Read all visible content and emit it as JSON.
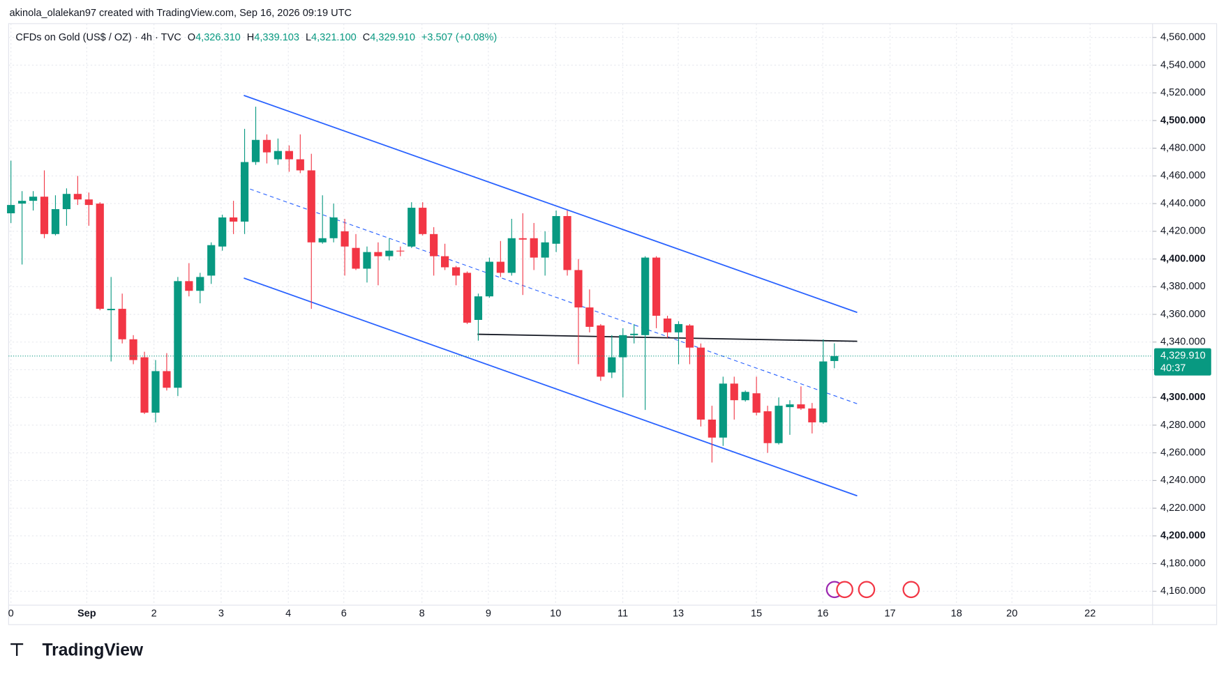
{
  "header": {
    "credit": "akinola_olalekan97 created with TradingView.com, Sep 16, 2026 09:19 UTC",
    "symbol": "CFDs on Gold (US$ / OZ) · 4h · TVC",
    "legend": [
      {
        "key": "O",
        "value": "4,326.310"
      },
      {
        "key": "H",
        "value": "4,339.103"
      },
      {
        "key": "L",
        "value": "4,321.100"
      },
      {
        "key": "C",
        "value": "4,329.910"
      }
    ],
    "change": "+3.507 (+0.08%)"
  },
  "brand": "TradingView",
  "chart_data": {
    "type": "candlestick",
    "up_color": "#089981",
    "down_color": "#f23645",
    "ylim": [
      4150,
      4570
    ],
    "yticks": [
      {
        "value": 4160,
        "label": "4,160.000"
      },
      {
        "value": 4180,
        "label": "4,180.000"
      },
      {
        "value": 4200,
        "label": "4,200.000"
      },
      {
        "value": 4220,
        "label": "4,220.000"
      },
      {
        "value": 4240,
        "label": "4,240.000"
      },
      {
        "value": 4260,
        "label": "4,260.000"
      },
      {
        "value": 4280,
        "label": "4,280.000"
      },
      {
        "value": 4300,
        "label": "4,300.000"
      },
      {
        "value": 4320,
        "label": "4,320.000"
      },
      {
        "value": 4340,
        "label": "4,340.000"
      },
      {
        "value": 4360,
        "label": "4,360.000"
      },
      {
        "value": 4380,
        "label": "4,380.000"
      },
      {
        "value": 4400,
        "label": "4,400.000"
      },
      {
        "value": 4420,
        "label": "4,420.000"
      },
      {
        "value": 4440,
        "label": "4,440.000"
      },
      {
        "value": 4460,
        "label": "4,460.000"
      },
      {
        "value": 4480,
        "label": "4,480.000"
      },
      {
        "value": 4500,
        "label": "4,500.000"
      },
      {
        "value": 4520,
        "label": "4,520.000"
      },
      {
        "value": 4540,
        "label": "4,540.000"
      },
      {
        "value": 4560,
        "label": "4,560.000"
      }
    ],
    "xticks": [
      "0",
      "Sep",
      "2",
      "3",
      "4",
      "6",
      "8",
      "9",
      "10",
      "11",
      "13",
      "15",
      "16",
      "17",
      "18",
      "20",
      "22"
    ],
    "grid": true,
    "last_price_label": "4,329.910",
    "countdown": "40:37",
    "ohlc": [
      [
        4433,
        4471,
        4426,
        4439
      ],
      [
        4440,
        4449,
        4396,
        4442
      ],
      [
        4442,
        4449,
        4435,
        4445
      ],
      [
        4445,
        4464,
        4415,
        4418
      ],
      [
        4418,
        4446,
        4417,
        4436
      ],
      [
        4436,
        4451,
        4424,
        4447
      ],
      [
        4447,
        4460,
        4439,
        4443
      ],
      [
        4443,
        4448,
        4424,
        4439
      ],
      [
        4440,
        4441,
        4363,
        4364
      ],
      [
        4363,
        4387,
        4326,
        4364
      ],
      [
        4364,
        4375,
        4339,
        4342
      ],
      [
        4342,
        4345,
        4324,
        4327
      ],
      [
        4329,
        4333,
        4288,
        4289
      ],
      [
        4289,
        4327,
        4282,
        4319
      ],
      [
        4319,
        4332,
        4305,
        4307
      ],
      [
        4307,
        4387,
        4301,
        4384
      ],
      [
        4384,
        4397,
        4373,
        4377
      ],
      [
        4377,
        4390,
        4368,
        4387
      ],
      [
        4388,
        4412,
        4382,
        4410
      ],
      [
        4409,
        4432,
        4406,
        4430
      ],
      [
        4430,
        4442,
        4418,
        4427
      ],
      [
        4427,
        4494,
        4418,
        4470
      ],
      [
        4470,
        4510,
        4468,
        4486
      ],
      [
        4486,
        4490,
        4469,
        4477
      ],
      [
        4472,
        4487,
        4468,
        4478
      ],
      [
        4478,
        4482,
        4463,
        4472
      ],
      [
        4472,
        4490,
        4462,
        4464
      ],
      [
        4464,
        4476,
        4364,
        4412
      ],
      [
        4412,
        4446,
        4411,
        4415
      ],
      [
        4415,
        4440,
        4412,
        4430
      ],
      [
        4420,
        4429,
        4388,
        4409
      ],
      [
        4408,
        4418,
        4392,
        4393
      ],
      [
        4393,
        4409,
        4383,
        4405
      ],
      [
        4405,
        4412,
        4381,
        4402
      ],
      [
        4402,
        4415,
        4399,
        4406
      ],
      [
        4406,
        4409,
        4402,
        4405.5
      ],
      [
        4409,
        4441,
        4408,
        4437
      ],
      [
        4437,
        4441,
        4417,
        4418
      ],
      [
        4418,
        4423,
        4388,
        4402
      ],
      [
        4402,
        4411,
        4392,
        4394
      ],
      [
        4394,
        4395,
        4381,
        4388
      ],
      [
        4390,
        4391,
        4353,
        4354
      ],
      [
        4356,
        4375,
        4341,
        4373
      ],
      [
        4373,
        4401,
        4372,
        4398
      ],
      [
        4398,
        4413,
        4387,
        4390
      ],
      [
        4390,
        4429,
        4388,
        4415
      ],
      [
        4415,
        4433,
        4374,
        4414
      ],
      [
        4415,
        4426,
        4392,
        4401
      ],
      [
        4401,
        4420,
        4388,
        4412
      ],
      [
        4411,
        4435,
        4405,
        4431
      ],
      [
        4431,
        4435,
        4388,
        4392
      ],
      [
        4392,
        4400,
        4324,
        4365
      ],
      [
        4365,
        4378,
        4347,
        4351
      ],
      [
        4352,
        4353,
        4312,
        4315
      ],
      [
        4318,
        4345,
        4314,
        4329
      ],
      [
        4329,
        4350,
        4300,
        4345
      ],
      [
        4345,
        4353,
        4339,
        4346
      ],
      [
        4345,
        4402,
        4291,
        4401
      ],
      [
        4401,
        4402,
        4350,
        4359
      ],
      [
        4357,
        4359,
        4343,
        4347
      ],
      [
        4347,
        4355,
        4324,
        4353
      ],
      [
        4352,
        4353,
        4324,
        4336
      ],
      [
        4336,
        4339,
        4279,
        4284
      ],
      [
        4284,
        4294,
        4253,
        4271
      ],
      [
        4271,
        4315,
        4265,
        4310
      ],
      [
        4310,
        4315,
        4284,
        4298
      ],
      [
        4298,
        4305,
        4297,
        4304
      ],
      [
        4303,
        4315,
        4287,
        4289
      ],
      [
        4290,
        4294,
        4260,
        4267
      ],
      [
        4267,
        4300,
        4266,
        4294
      ],
      [
        4293,
        4298,
        4273,
        4295
      ],
      [
        4295,
        4308,
        4291,
        4292
      ],
      [
        4292,
        4296,
        4274,
        4282
      ],
      [
        4282,
        4342,
        4281,
        4326
      ],
      [
        4326.31,
        4339.103,
        4321.1,
        4329.91
      ]
    ]
  }
}
